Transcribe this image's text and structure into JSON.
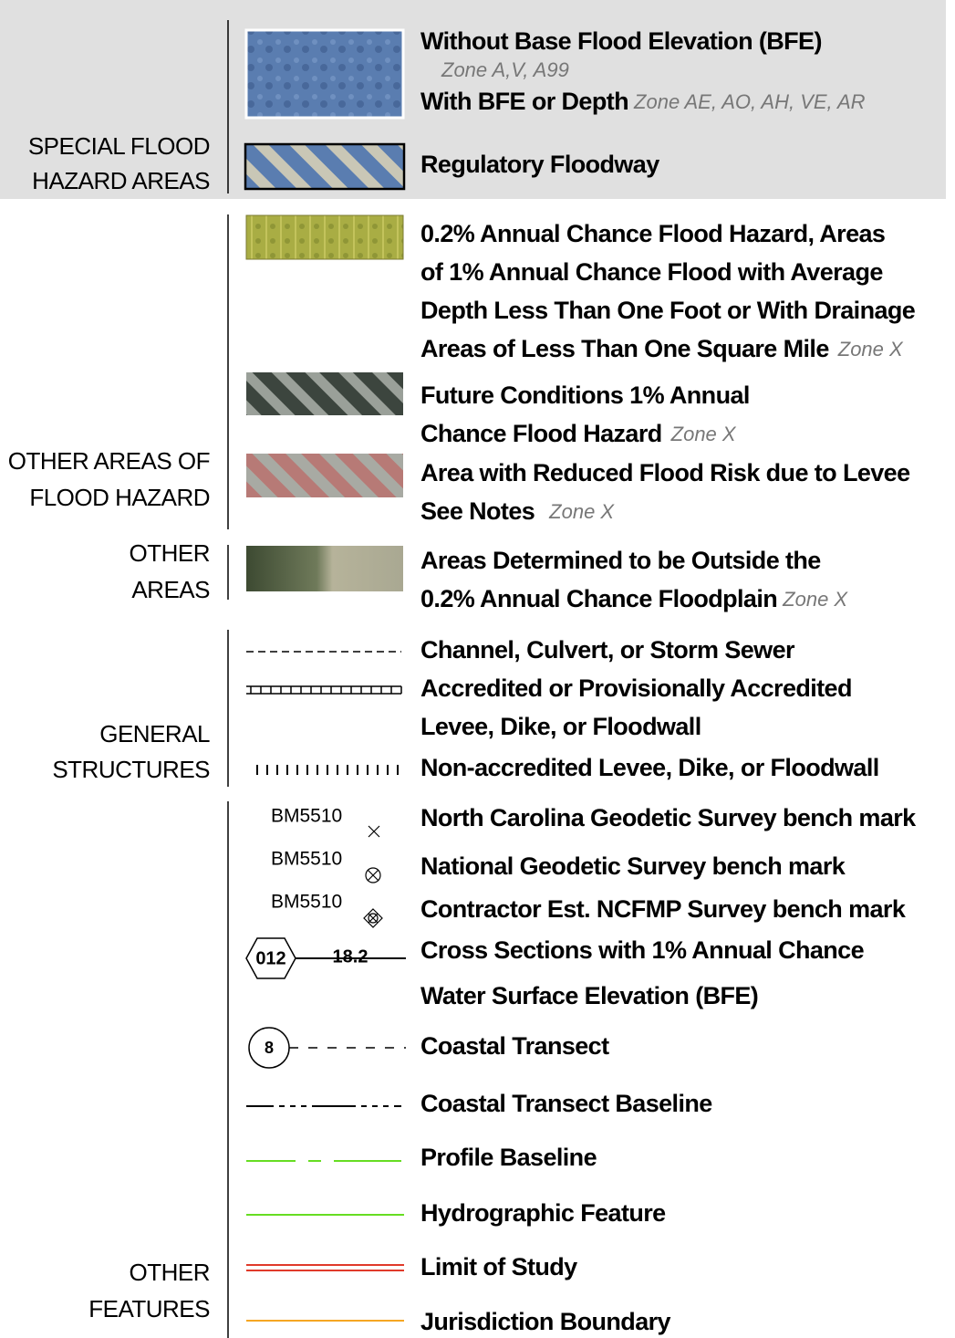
{
  "sections": [
    {
      "label": [
        "SPECIAL FLOOD",
        "HAZARD AREAS"
      ]
    },
    {
      "label": [
        "OTHER AREAS OF",
        "FLOOD HAZARD"
      ]
    },
    {
      "label": [
        "OTHER",
        "AREAS"
      ]
    },
    {
      "label": [
        "GENERAL",
        "STRUCTURES"
      ]
    },
    {
      "label": [
        "OTHER",
        "FEATURES"
      ]
    }
  ],
  "items": [
    {
      "lines": [
        "Without Base Flood Elevation (BFE)"
      ],
      "zone": "Zone A,V, A99"
    },
    {
      "lines": [
        "With BFE or Depth"
      ],
      "zone": "Zone AE, AO, AH, VE, AR"
    },
    {
      "lines": [
        "Regulatory Floodway"
      ]
    },
    {
      "lines": [
        "0.2% Annual Chance Flood Hazard, Areas",
        "of 1% Annual Chance Flood with Average",
        "Depth Less Than One Foot or With Drainage",
        "Areas of Less Than One Square Mile"
      ],
      "zone": "Zone X"
    },
    {
      "lines": [
        "Future Conditions 1% Annual",
        "Chance Flood Hazard"
      ],
      "zone": "Zone X"
    },
    {
      "lines": [
        "Area with Reduced Flood Risk due to Levee",
        "See Notes"
      ],
      "zone": "Zone X"
    },
    {
      "lines": [
        "Areas Determined to be Outside the",
        "0.2% Annual Chance Floodplain"
      ],
      "zone": "Zone X"
    },
    {
      "lines": [
        "Channel, Culvert, or Storm Sewer"
      ]
    },
    {
      "lines": [
        "Accredited or Provisionally Accredited",
        "Levee, Dike, or Floodwall"
      ]
    },
    {
      "lines": [
        "Non-accredited Levee, Dike, or Floodwall"
      ]
    },
    {
      "lines": [
        "North Carolina Geodetic Survey bench mark"
      ],
      "symbol": [
        "BM5510"
      ]
    },
    {
      "lines": [
        "National Geodetic Survey bench mark"
      ],
      "symbol": [
        "BM5510"
      ]
    },
    {
      "lines": [
        "Contractor Est. NCFMP Survey bench mark"
      ],
      "symbol": [
        "BM5510"
      ]
    },
    {
      "lines": [
        "Cross Sections with 1% Annual Chance",
        "Water Surface Elevation (BFE)"
      ],
      "symbol": [
        "012",
        "18.2"
      ]
    },
    {
      "lines": [
        "Coastal Transect"
      ],
      "symbol": [
        "8"
      ]
    },
    {
      "lines": [
        "Coastal Transect Baseline"
      ]
    },
    {
      "lines": [
        "Profile Baseline"
      ]
    },
    {
      "lines": [
        "Hydrographic Feature"
      ]
    },
    {
      "lines": [
        "Limit of Study"
      ]
    },
    {
      "lines": [
        "Jurisdiction Boundary"
      ]
    }
  ]
}
